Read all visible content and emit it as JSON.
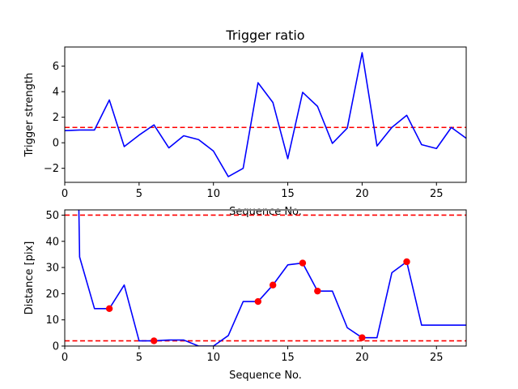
{
  "chart_data": [
    {
      "type": "line",
      "title": "Trigger ratio",
      "xlabel": "Sequence No.",
      "ylabel": "Trigger strength",
      "xlim": [
        0,
        27
      ],
      "ylim": [
        -3.1,
        7.5
      ],
      "xticks": [
        0,
        5,
        10,
        15,
        20,
        25
      ],
      "yticks": [
        -2,
        0,
        2,
        4,
        6
      ],
      "grid": false,
      "series": [
        {
          "color": "#0000ff",
          "x": [
            0,
            1,
            2,
            3,
            4,
            5,
            6,
            7,
            8,
            9,
            10,
            11,
            12,
            13,
            14,
            15,
            16,
            17,
            18,
            19,
            20,
            21,
            22,
            23,
            24,
            25,
            26,
            27
          ],
          "values": [
            0.95,
            1.0,
            1.0,
            3.35,
            -0.3,
            0.6,
            1.4,
            -0.4,
            0.55,
            0.25,
            -0.65,
            -2.65,
            -2.0,
            4.7,
            3.15,
            -1.25,
            3.95,
            2.85,
            -0.05,
            1.15,
            7.05,
            -0.25,
            1.2,
            2.15,
            -0.15,
            -0.45,
            1.2,
            0.35
          ]
        }
      ],
      "reference_lines": [
        {
          "orientation": "horizontal",
          "y": 1.2,
          "color": "#ff0000",
          "style": "dashed"
        }
      ]
    },
    {
      "type": "line",
      "title": "",
      "xlabel": "Sequence No.",
      "ylabel": "Distance [pix]",
      "xlim": [
        0,
        27
      ],
      "ylim": [
        0,
        52
      ],
      "xticks": [
        0,
        5,
        10,
        15,
        20,
        25
      ],
      "yticks": [
        0,
        10,
        20,
        30,
        40,
        50
      ],
      "grid": false,
      "series": [
        {
          "color": "#0000ff",
          "x": [
            0.95,
            1.0,
            2,
            3,
            4,
            5,
            6,
            7,
            8,
            9,
            10,
            11,
            12,
            13,
            14,
            15,
            16,
            17,
            18,
            19,
            20,
            21,
            22,
            23,
            24,
            25,
            26,
            27
          ],
          "values": [
            52,
            34,
            14.3,
            14.3,
            23.3,
            2.0,
            2.0,
            2.3,
            2.3,
            0.0,
            0.0,
            4.0,
            17.0,
            17.0,
            23.3,
            31.0,
            31.7,
            21.0,
            21.0,
            7.0,
            3.2,
            3.2,
            28.0,
            32.2,
            8.0,
            8.0,
            8.0,
            8.0
          ]
        }
      ],
      "markers": {
        "color": "#ff0000",
        "x": [
          3,
          6,
          13,
          14,
          16,
          17,
          20,
          23
        ],
        "values": [
          14.3,
          2.0,
          17.0,
          23.3,
          31.7,
          21.0,
          3.2,
          32.2
        ]
      },
      "reference_lines": [
        {
          "orientation": "horizontal",
          "y": 50,
          "color": "#ff0000",
          "style": "dashed"
        },
        {
          "orientation": "horizontal",
          "y": 2,
          "color": "#ff0000",
          "style": "dashed"
        }
      ]
    }
  ]
}
